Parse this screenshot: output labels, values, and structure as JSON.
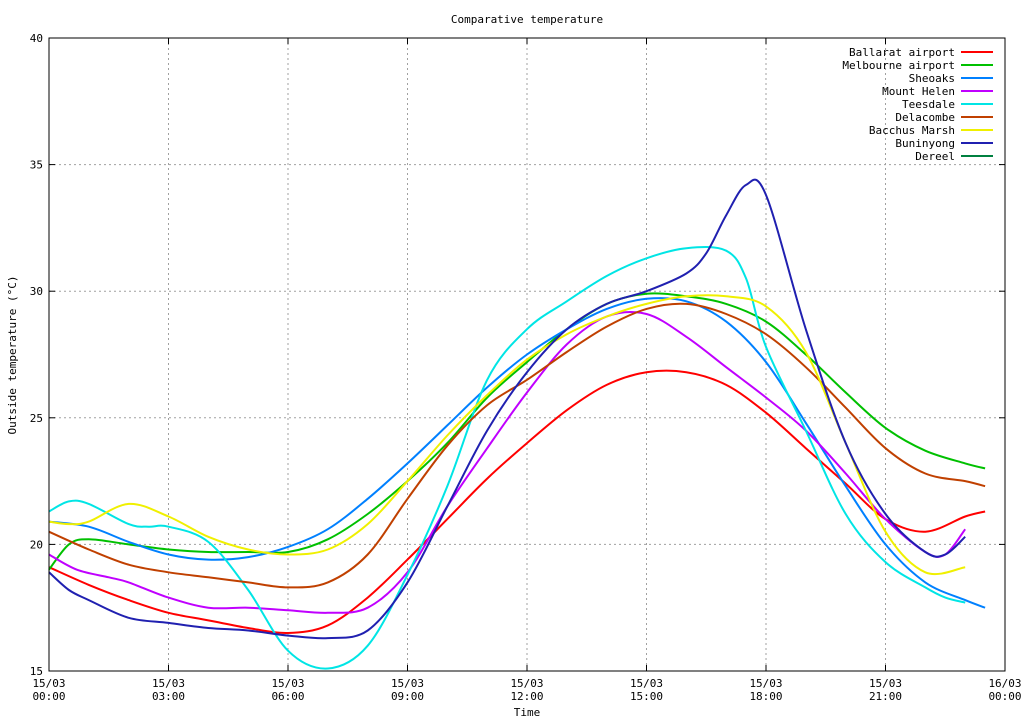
{
  "chart_data": {
    "type": "line",
    "title": "Comparative temperature",
    "xlabel": "Time",
    "ylabel": "Outside temperature (°C)",
    "xlim": [
      0,
      24
    ],
    "ylim": [
      15,
      40
    ],
    "grid": true,
    "legend_position": "top-right",
    "x_ticks": [
      {
        "x": 0,
        "line1": "15/03",
        "line2": "00:00"
      },
      {
        "x": 3,
        "line1": "15/03",
        "line2": "03:00"
      },
      {
        "x": 6,
        "line1": "15/03",
        "line2": "06:00"
      },
      {
        "x": 9,
        "line1": "15/03",
        "line2": "09:00"
      },
      {
        "x": 12,
        "line1": "15/03",
        "line2": "12:00"
      },
      {
        "x": 15,
        "line1": "15/03",
        "line2": "15:00"
      },
      {
        "x": 18,
        "line1": "15/03",
        "line2": "18:00"
      },
      {
        "x": 21,
        "line1": "15/03",
        "line2": "21:00"
      },
      {
        "x": 24,
        "line1": "16/03",
        "line2": "00:00"
      }
    ],
    "y_ticks": [
      15,
      20,
      25,
      30,
      35,
      40
    ],
    "series": [
      {
        "name": "Ballarat airport",
        "color": "#ff0000",
        "x": [
          0,
          1,
          2,
          3,
          4,
          5,
          6,
          7,
          8,
          9,
          10,
          11,
          12,
          13,
          14,
          15,
          16,
          17,
          18,
          19,
          20,
          21,
          22,
          23,
          23.5
        ],
        "y": [
          19.1,
          18.4,
          17.8,
          17.3,
          17.0,
          16.7,
          16.5,
          16.8,
          17.9,
          19.4,
          21.0,
          22.6,
          24.0,
          25.3,
          26.3,
          26.8,
          26.8,
          26.3,
          25.2,
          23.8,
          22.4,
          21.0,
          20.5,
          21.1,
          21.3
        ]
      },
      {
        "name": "Melbourne airport",
        "color": "#00c000",
        "x": [
          0,
          0.5,
          1,
          2,
          3,
          4,
          5,
          6,
          7,
          8,
          9,
          10,
          11,
          12,
          13,
          14,
          15,
          16,
          17,
          18,
          19,
          20,
          21,
          22,
          23,
          23.5
        ],
        "y": [
          19.0,
          20.0,
          20.2,
          20.0,
          19.8,
          19.7,
          19.7,
          19.7,
          20.2,
          21.2,
          22.5,
          24.0,
          25.8,
          27.2,
          28.5,
          29.5,
          29.9,
          29.8,
          29.5,
          28.8,
          27.5,
          26.0,
          24.6,
          23.7,
          23.2,
          23.0
        ]
      },
      {
        "name": "Sheoaks",
        "color": "#0080ff",
        "x": [
          0,
          1,
          2,
          3,
          4,
          5,
          6,
          7,
          8,
          9,
          10,
          11,
          12,
          13,
          14,
          15,
          16,
          17,
          18,
          19,
          20,
          21,
          22,
          23,
          23.5
        ],
        "y": [
          20.9,
          20.7,
          20.1,
          19.6,
          19.4,
          19.5,
          19.9,
          20.6,
          21.8,
          23.2,
          24.7,
          26.2,
          27.5,
          28.5,
          29.3,
          29.7,
          29.6,
          28.8,
          27.2,
          24.8,
          22.3,
          20.0,
          18.5,
          17.8,
          17.5
        ]
      },
      {
        "name": "Mount Helen",
        "color": "#c000ff",
        "x": [
          0,
          0.7,
          1.5,
          2,
          3,
          4,
          5,
          6,
          7,
          8,
          9,
          10,
          11,
          12,
          13,
          14,
          15,
          16,
          17,
          18,
          19,
          20,
          21,
          22,
          22.5,
          23
        ],
        "y": [
          19.6,
          19.0,
          18.7,
          18.5,
          17.9,
          17.5,
          17.5,
          17.4,
          17.3,
          17.5,
          18.9,
          21.5,
          23.8,
          26.0,
          27.9,
          29.0,
          29.1,
          28.2,
          27.0,
          25.8,
          24.5,
          22.8,
          21.0,
          19.7,
          19.6,
          20.6
        ]
      },
      {
        "name": "Teesdale",
        "color": "#00e5e5",
        "x": [
          0,
          0.5,
          1,
          2,
          2.5,
          3,
          4,
          5,
          6,
          7,
          8,
          9,
          10,
          11,
          12,
          13,
          14,
          15,
          16,
          17,
          17.5,
          18,
          19,
          20,
          21,
          22,
          22.5,
          23
        ],
        "y": [
          21.3,
          21.7,
          21.6,
          20.8,
          20.7,
          20.7,
          20.1,
          18.2,
          15.8,
          15.1,
          16.0,
          18.8,
          22.3,
          26.5,
          28.5,
          29.6,
          30.6,
          31.3,
          31.7,
          31.6,
          30.5,
          27.8,
          24.5,
          21.2,
          19.3,
          18.3,
          17.9,
          17.7
        ]
      },
      {
        "name": "Delacombe",
        "color": "#c04000",
        "x": [
          0,
          1,
          2,
          3,
          4,
          5,
          6,
          7,
          8,
          9,
          10,
          11,
          12,
          13,
          14,
          15,
          16,
          17,
          18,
          19,
          20,
          21,
          22,
          23,
          23.5
        ],
        "y": [
          20.5,
          19.8,
          19.2,
          18.9,
          18.7,
          18.5,
          18.3,
          18.5,
          19.6,
          21.8,
          23.9,
          25.5,
          26.5,
          27.6,
          28.6,
          29.3,
          29.5,
          29.1,
          28.3,
          27.0,
          25.4,
          23.8,
          22.8,
          22.5,
          22.3
        ]
      },
      {
        "name": "Bacchus Marsh",
        "color": "#f0f000",
        "x": [
          0,
          0.5,
          1,
          2,
          3,
          4,
          5,
          6,
          7,
          8,
          9,
          10,
          11,
          12,
          13,
          14,
          15,
          16,
          17,
          18,
          19,
          20,
          21,
          22,
          23
        ],
        "y": [
          20.9,
          20.8,
          20.9,
          21.6,
          21.1,
          20.3,
          19.8,
          19.6,
          19.8,
          20.8,
          22.5,
          24.3,
          25.9,
          27.3,
          28.3,
          29.0,
          29.5,
          29.8,
          29.8,
          29.4,
          27.6,
          24.0,
          20.5,
          18.9,
          19.1
        ]
      },
      {
        "name": "Buninyong",
        "color": "#2020b0",
        "x": [
          0,
          0.5,
          1,
          2,
          3,
          4,
          5,
          6,
          7,
          8,
          9,
          10,
          11,
          12,
          13,
          14,
          15,
          16,
          16.5,
          17,
          17.5,
          18,
          19,
          20,
          21,
          22,
          22.5,
          23
        ],
        "y": [
          18.9,
          18.2,
          17.8,
          17.1,
          16.9,
          16.7,
          16.6,
          16.4,
          16.3,
          16.6,
          18.5,
          21.5,
          24.5,
          26.8,
          28.5,
          29.5,
          30.0,
          30.7,
          31.5,
          33.0,
          34.2,
          33.8,
          28.5,
          24.0,
          21.2,
          19.7,
          19.6,
          20.3
        ]
      },
      {
        "name": "Dereel",
        "color": "#008040",
        "x": [],
        "y": []
      }
    ]
  }
}
